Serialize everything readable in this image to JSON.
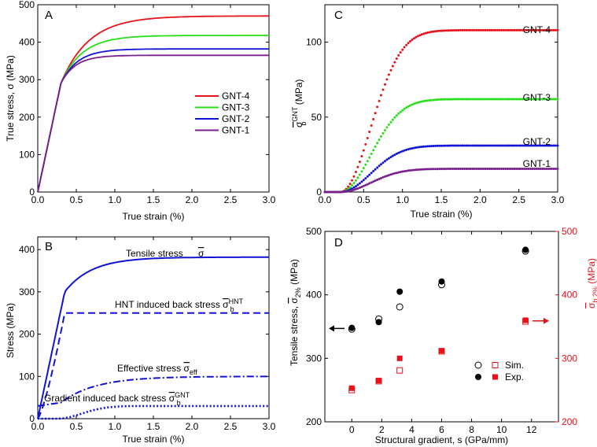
{
  "figure": {
    "colors": {
      "GNT-4": "#e8121b",
      "GNT-3": "#27e01a",
      "GNT-2": "#1313d6",
      "GNT-1": "#7a1f8c",
      "blue": "#1313d6",
      "red": "#e8121b",
      "black": "#000000"
    }
  },
  "chart_data": [
    {
      "panel": "A",
      "type": "line",
      "xlabel": "True strain (%)",
      "ylabel": "True stress, σ (MPa)",
      "xlim": [
        0,
        3.0
      ],
      "ylim": [
        0,
        500
      ],
      "xticks": [
        "0.0",
        "0.5",
        "1.0",
        "1.5",
        "2.0",
        "2.5",
        "3.0"
      ],
      "yticks": [
        "0",
        "100",
        "200",
        "300",
        "400",
        "500"
      ],
      "legend": [
        "GNT-4",
        "GNT-3",
        "GNT-2",
        "GNT-1"
      ],
      "legend_position": "center-right",
      "series": [
        {
          "name": "GNT-4",
          "saturation": 470,
          "knee": 290
        },
        {
          "name": "GNT-3",
          "saturation": 418,
          "knee": 290
        },
        {
          "name": "GNT-2",
          "saturation": 382,
          "knee": 290
        },
        {
          "name": "GNT-1",
          "saturation": 365,
          "knee": 290
        }
      ]
    },
    {
      "panel": "B",
      "type": "line",
      "xlabel": "True strain (%)",
      "ylabel": "Stress (MPa)",
      "xlim": [
        0,
        3.0
      ],
      "ylim": [
        0,
        430
      ],
      "xticks": [
        "0.0",
        "0.5",
        "1.0",
        "1.5",
        "2.0",
        "2.5",
        "3.0"
      ],
      "yticks": [
        "0",
        "100",
        "200",
        "300",
        "400"
      ],
      "series": [
        {
          "name": "Tensile stress",
          "style": "solid",
          "saturation": 382
        },
        {
          "name": "HNT induced back stress",
          "style": "dashed",
          "saturation": 250
        },
        {
          "name": "Effective stress",
          "style": "dash-dot",
          "saturation": 100
        },
        {
          "name": "Gradient induced back stress",
          "style": "dotted",
          "saturation": 30
        }
      ],
      "annotations": [
        {
          "text": "Tensile stress σ̄"
        },
        {
          "text": "HNT induced back stress",
          "sym": "σ",
          "sub": "b",
          "sup": "HNT"
        },
        {
          "text": "Effective stress",
          "sym": "σ",
          "sub": "eff"
        },
        {
          "text": "Gradient induced back stress",
          "sym": "σ",
          "sub": "b",
          "sup": "GNT"
        }
      ]
    },
    {
      "panel": "C",
      "type": "line",
      "xlabel": "True strain (%)",
      "ylabel_sym": "σ",
      "ylabel_sub": "b",
      "ylabel_sup": "GNT",
      "ylabel_unit": "(MPa)",
      "xlim": [
        0,
        3.0
      ],
      "ylim": [
        0,
        125
      ],
      "xticks": [
        "0.0",
        "0.5",
        "1.0",
        "1.5",
        "2.0",
        "2.5",
        "3.0"
      ],
      "yticks": [
        "0",
        "50",
        "100"
      ],
      "series": [
        {
          "name": "GNT-4",
          "saturation": 108
        },
        {
          "name": "GNT-3",
          "saturation": 62
        },
        {
          "name": "GNT-2",
          "saturation": 31
        },
        {
          "name": "GNT-1",
          "saturation": 15.5
        }
      ]
    },
    {
      "panel": "D",
      "type": "scatter",
      "xlabel": "Structural gradient, s (GPa/mm)",
      "ylabel_left": "Tensile stress, σ̄ 2% (MPa)",
      "ylabel_left_sym": "σ",
      "ylabel_left_sub": "2%",
      "ylabel_left_pre": "Tensile stress,",
      "ylabel_unit": "(MPa)",
      "ylabel_right_sym": "σ",
      "ylabel_right_sub": "b,2%",
      "xlim": [
        -1.8,
        13.8
      ],
      "ylim_left": [
        200,
        500
      ],
      "ylim_right": [
        200,
        500
      ],
      "xticks": [
        "0",
        "2",
        "4",
        "6",
        "8",
        "10",
        "12"
      ],
      "yticks_left": [
        "200",
        "300",
        "400",
        "500"
      ],
      "yticks_right": [
        "200",
        "300",
        "400",
        "500"
      ],
      "legend": [
        "Sim.",
        "Exp."
      ],
      "series": [
        {
          "name": "Tensile stress Sim.",
          "axis": "left",
          "marker": "open-circle",
          "x": [
            0,
            1.8,
            3.2,
            6,
            11.6
          ],
          "y": [
            346,
            362,
            381,
            416,
            469
          ]
        },
        {
          "name": "Tensile stress Exp.",
          "axis": "left",
          "marker": "filled-circle",
          "x": [
            0,
            1.8,
            3.2,
            6,
            11.6
          ],
          "y": [
            348,
            357,
            405,
            421,
            471
          ]
        },
        {
          "name": "Back stress Sim.",
          "axis": "right",
          "marker": "open-square",
          "x": [
            0,
            1.8,
            3.2,
            6,
            11.6
          ],
          "y": [
            250,
            264,
            281,
            311,
            358
          ]
        },
        {
          "name": "Back stress Exp.",
          "axis": "right",
          "marker": "filled-square",
          "x": [
            0,
            1.8,
            3.2,
            6,
            11.6
          ],
          "y": [
            253,
            265,
            300,
            312,
            360
          ]
        }
      ]
    }
  ]
}
